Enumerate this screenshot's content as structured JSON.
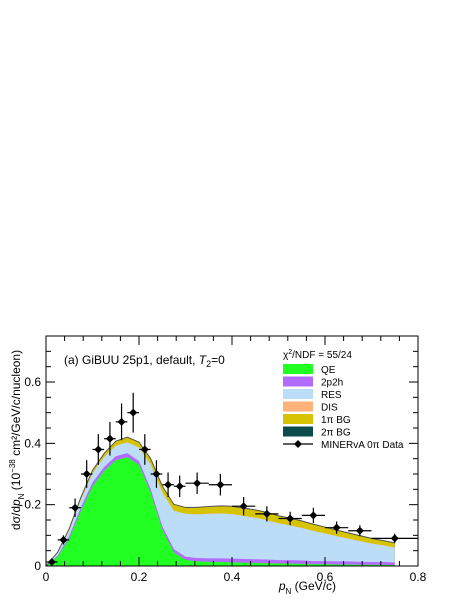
{
  "chart_data": {
    "type": "area",
    "annotation": {
      "prefix": "(a) GiBUU 25p1, default, ",
      "var": "T",
      "sub": "2",
      "suffix": "=0"
    },
    "chi2": {
      "label": "χ",
      "sup": "2",
      "rest": "/NDF = 55/24"
    },
    "xlabel": {
      "var": "p",
      "sub": "N",
      "unit": " (GeV/c)"
    },
    "ylabel": {
      "pre": "dσ/d",
      "var": "p",
      "sub": "N",
      "mid": " (10",
      "exp": "−38",
      "post": " cm²/GeV/c/nucleon)"
    },
    "xlim": [
      0,
      0.8
    ],
    "ylim": [
      0,
      0.75
    ],
    "xticks": [
      "0",
      "0.2",
      "0.4",
      "0.6",
      "0.8"
    ],
    "xtick_values": [
      0,
      0.2,
      0.4,
      0.6,
      0.8
    ],
    "yticks": [
      "0",
      "0.2",
      "0.4",
      "0.6"
    ],
    "ytick_values": [
      0,
      0.2,
      0.4,
      0.6
    ],
    "x": [
      0.0,
      0.025,
      0.05,
      0.075,
      0.1,
      0.125,
      0.15,
      0.175,
      0.2,
      0.225,
      0.25,
      0.275,
      0.3,
      0.325,
      0.35,
      0.375,
      0.4,
      0.425,
      0.45,
      0.475,
      0.5,
      0.525,
      0.55,
      0.575,
      0.6,
      0.625,
      0.65,
      0.675,
      0.7,
      0.725,
      0.75
    ],
    "series": [
      {
        "name": "QE",
        "color": "#22ff22",
        "values": [
          0.0,
          0.03,
          0.09,
          0.18,
          0.26,
          0.31,
          0.345,
          0.355,
          0.33,
          0.24,
          0.12,
          0.045,
          0.02,
          0.015,
          0.014,
          0.013,
          0.012,
          0.011,
          0.01,
          0.009,
          0.008,
          0.008,
          0.007,
          0.006,
          0.006,
          0.005,
          0.005,
          0.004,
          0.004,
          0.004,
          0.003
        ]
      },
      {
        "name": "2p2h",
        "color": "#b36bff",
        "values": [
          0.0,
          0.004,
          0.008,
          0.011,
          0.012,
          0.013,
          0.013,
          0.013,
          0.012,
          0.011,
          0.01,
          0.01,
          0.01,
          0.011,
          0.011,
          0.012,
          0.012,
          0.012,
          0.012,
          0.012,
          0.011,
          0.011,
          0.011,
          0.01,
          0.01,
          0.01,
          0.01,
          0.01,
          0.009,
          0.009,
          0.009
        ]
      },
      {
        "name": "RES",
        "color": "#bbddf7",
        "values": [
          0.0,
          0.008,
          0.018,
          0.025,
          0.03,
          0.032,
          0.034,
          0.035,
          0.045,
          0.08,
          0.11,
          0.125,
          0.14,
          0.142,
          0.145,
          0.146,
          0.145,
          0.14,
          0.135,
          0.128,
          0.12,
          0.113,
          0.106,
          0.098,
          0.09,
          0.082,
          0.074,
          0.067,
          0.06,
          0.054,
          0.048
        ]
      },
      {
        "name": "DIS",
        "color": "#ffb27a",
        "values": [
          0.0,
          0.0,
          0.0,
          0.0,
          0.0,
          0.0,
          0.0,
          0.0,
          0.0,
          0.0,
          0.0,
          0.0,
          0.0,
          0.001,
          0.001,
          0.001,
          0.001,
          0.001,
          0.001,
          0.001,
          0.001,
          0.001,
          0.001,
          0.001,
          0.001,
          0.001,
          0.001,
          0.001,
          0.001,
          0.001,
          0.001
        ]
      },
      {
        "name": "1π BG",
        "color": "#d6c400",
        "values": [
          0.0,
          0.003,
          0.006,
          0.008,
          0.01,
          0.012,
          0.014,
          0.016,
          0.016,
          0.018,
          0.02,
          0.02,
          0.02,
          0.021,
          0.022,
          0.023,
          0.024,
          0.024,
          0.024,
          0.024,
          0.023,
          0.022,
          0.021,
          0.02,
          0.019,
          0.018,
          0.017,
          0.016,
          0.015,
          0.014,
          0.013
        ]
      },
      {
        "name": "2π BG",
        "color": "#0c4b4b",
        "values": [
          0.0,
          0.0,
          0.0,
          0.0,
          0.0,
          0.0,
          0.001,
          0.001,
          0.001,
          0.001,
          0.001,
          0.001,
          0.001,
          0.001,
          0.001,
          0.001,
          0.001,
          0.001,
          0.001,
          0.001,
          0.001,
          0.001,
          0.001,
          0.001,
          0.001,
          0.001,
          0.001,
          0.001,
          0.001,
          0.001,
          0.001
        ]
      }
    ],
    "data_points": {
      "name": "MINERvA 0π Data",
      "x": [
        0.0125,
        0.0375,
        0.0625,
        0.0875,
        0.1125,
        0.1375,
        0.1625,
        0.1875,
        0.2125,
        0.2375,
        0.2625,
        0.2875,
        0.325,
        0.375,
        0.425,
        0.475,
        0.525,
        0.575,
        0.625,
        0.675,
        0.75
      ],
      "xerr": [
        0.0125,
        0.0125,
        0.0125,
        0.0125,
        0.0125,
        0.0125,
        0.0125,
        0.0125,
        0.0125,
        0.0125,
        0.0125,
        0.0125,
        0.025,
        0.025,
        0.025,
        0.025,
        0.025,
        0.025,
        0.025,
        0.025,
        0.05
      ],
      "y": [
        0.013,
        0.085,
        0.19,
        0.3,
        0.38,
        0.415,
        0.47,
        0.5,
        0.38,
        0.3,
        0.265,
        0.26,
        0.27,
        0.265,
        0.195,
        0.17,
        0.155,
        0.165,
        0.125,
        0.115,
        0.09
      ],
      "yerr": [
        0.005,
        0.015,
        0.03,
        0.045,
        0.05,
        0.055,
        0.06,
        0.065,
        0.05,
        0.045,
        0.04,
        0.035,
        0.035,
        0.035,
        0.03,
        0.025,
        0.022,
        0.025,
        0.02,
        0.018,
        0.015
      ]
    },
    "legend_position": "top-right",
    "grid": false
  }
}
